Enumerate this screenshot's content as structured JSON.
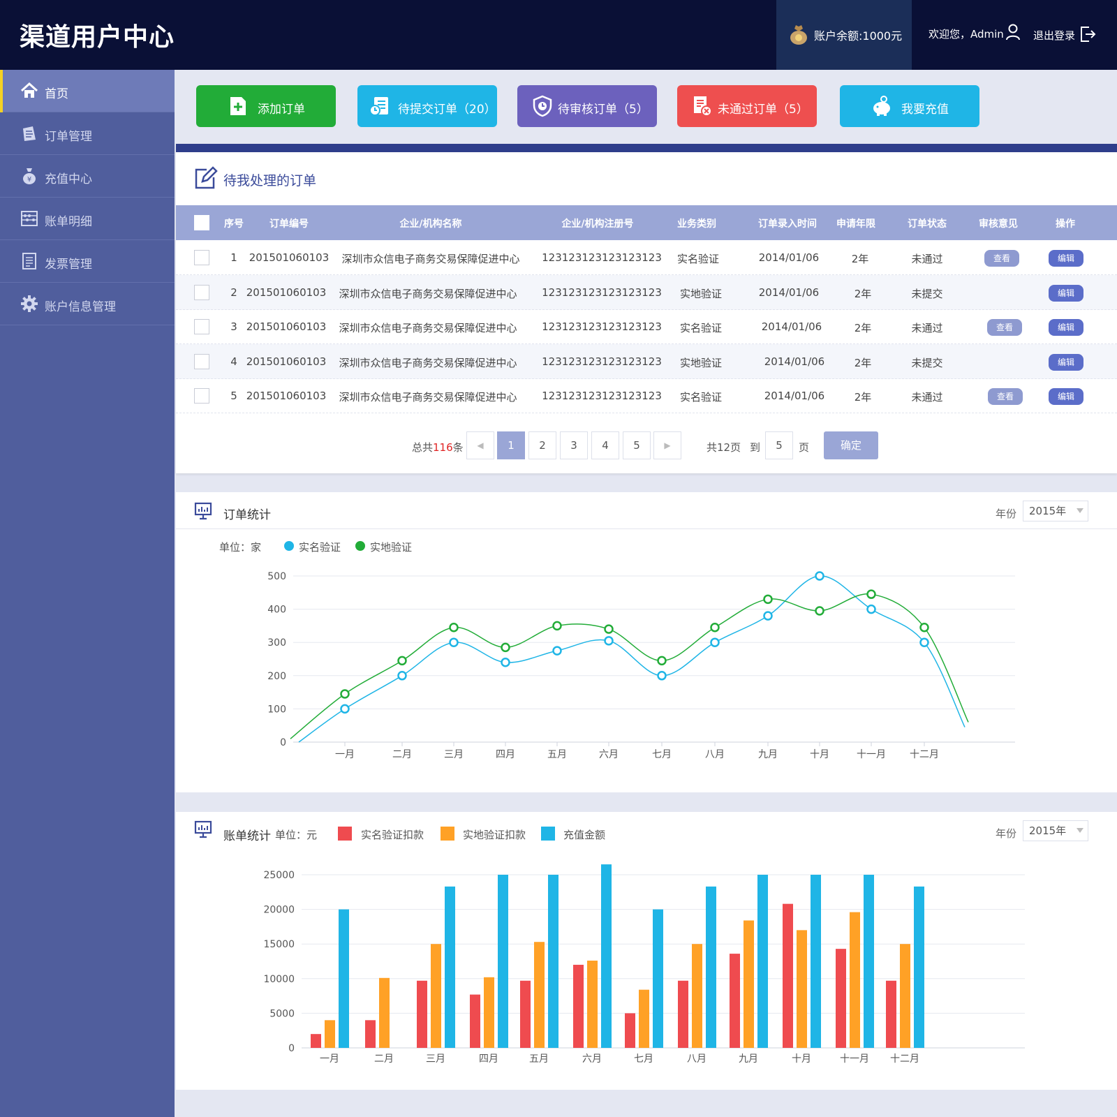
{
  "header": {
    "logo": "渠道用户中心",
    "balance": "账户余额:1000元",
    "welcome": "欢迎您，Admin",
    "logout": "退出登录"
  },
  "sidebar": {
    "items": [
      {
        "label": "首页",
        "icon": "home-icon",
        "active": true
      },
      {
        "label": "订单管理",
        "icon": "order-icon"
      },
      {
        "label": "充值中心",
        "icon": "money-bag-icon"
      },
      {
        "label": "账单明细",
        "icon": "abacus-icon"
      },
      {
        "label": "发票管理",
        "icon": "invoice-icon"
      },
      {
        "label": "账户信息管理",
        "icon": "gear-icon"
      }
    ]
  },
  "actions": [
    {
      "label": "添加订单",
      "color": "#22ac38",
      "icon": "add-document-icon"
    },
    {
      "label": "待提交订单（20）",
      "color": "#1fb5e6",
      "icon": "pending-submit-icon"
    },
    {
      "label": "待审核订单（5）",
      "color": "#6c61bd",
      "icon": "shield-clock-icon"
    },
    {
      "label": "未通过订单（5）",
      "color": "#ee4f4f",
      "icon": "rejected-document-icon"
    },
    {
      "label": "我要充值",
      "color": "#1fb5e6",
      "icon": "piggy-bank-icon"
    }
  ],
  "orders": {
    "title": "待我处理的订单",
    "columns": [
      "序号",
      "订单编号",
      "企业/机构名称",
      "企业/机构注册号",
      "业务类别",
      "订单录入时间",
      "申请年限",
      "订单状态",
      "审核意见",
      "操作"
    ],
    "rows": [
      {
        "no": "1",
        "order_id": "201501060103",
        "company": "深圳市众信电子商务交易保障促进中心",
        "reg_no": "123123123123123123",
        "category": "实名验证",
        "time": "2014/01/06",
        "years": "2年",
        "status": "未通过",
        "review": "查看",
        "op": "编辑"
      },
      {
        "no": "2",
        "order_id": "201501060103",
        "company": "深圳市众信电子商务交易保障促进中心",
        "reg_no": "123123123123123123",
        "category": "实地验证",
        "time": "2014/01/06",
        "years": "2年",
        "status": "未提交",
        "review": "",
        "op": "编辑"
      },
      {
        "no": "3",
        "order_id": "201501060103",
        "company": "深圳市众信电子商务交易保障促进中心",
        "reg_no": "123123123123123123",
        "category": "实名验证",
        "time": "2014/01/06",
        "years": "2年",
        "status": "未通过",
        "review": "查看",
        "op": "编辑"
      },
      {
        "no": "4",
        "order_id": "201501060103",
        "company": "深圳市众信电子商务交易保障促进中心",
        "reg_no": "123123123123123123",
        "category": "实地验证",
        "time": "2014/01/06",
        "years": "2年",
        "status": "未提交",
        "review": "",
        "op": "编辑"
      },
      {
        "no": "5",
        "order_id": "201501060103",
        "company": "深圳市众信电子商务交易保障促进中心",
        "reg_no": "123123123123123123",
        "category": "实名验证",
        "time": "2014/01/06",
        "years": "2年",
        "status": "未通过",
        "review": "查看",
        "op": "编辑"
      }
    ],
    "pagination": {
      "total_prefix": "总共",
      "total": "116",
      "total_suffix": "条",
      "pages": [
        "1",
        "2",
        "3",
        "4",
        "5"
      ],
      "current": "1",
      "page_count": "共12页",
      "goto_label": "到",
      "goto_value": "5",
      "page_unit": "页",
      "confirm": "确定"
    }
  },
  "order_stats": {
    "title": "订单统计",
    "year_label": "年份",
    "year_value": "2015年",
    "unit": "单位：家"
  },
  "bill_stats": {
    "title": "账单统计",
    "year_label": "年份",
    "year_value": "2015年",
    "unit": "单位：元"
  },
  "chart_data": [
    {
      "type": "line",
      "categories": [
        "一月",
        "二月",
        "三月",
        "四月",
        "五月",
        "六月",
        "七月",
        "八月",
        "九月",
        "十月",
        "十一月",
        "十二月"
      ],
      "ylim": [
        0,
        500
      ],
      "yticks": [
        0,
        100,
        200,
        300,
        400,
        500
      ],
      "series": [
        {
          "name": "实名验证",
          "color": "#1fb5e6",
          "values": [
            100,
            200,
            300,
            240,
            275,
            305,
            200,
            300,
            380,
            500,
            400,
            300
          ]
        },
        {
          "name": "实地验证",
          "color": "#22ac38",
          "values": [
            145,
            245,
            345,
            285,
            350,
            340,
            245,
            345,
            430,
            395,
            445,
            345
          ]
        }
      ]
    },
    {
      "type": "bar",
      "categories": [
        "一月",
        "二月",
        "三月",
        "四月",
        "五月",
        "六月",
        "七月",
        "八月",
        "九月",
        "十月",
        "十一月",
        "十二月"
      ],
      "ylim": [
        0,
        25000
      ],
      "yticks": [
        0,
        5000,
        10000,
        15000,
        20000,
        25000
      ],
      "series": [
        {
          "name": "实名验证扣款",
          "color": "#ef4b4f",
          "values": [
            2000,
            4000,
            9700,
            7700,
            9700,
            12000,
            5000,
            9700,
            13600,
            20800,
            14300,
            9700
          ]
        },
        {
          "name": "实地验证扣款",
          "color": "#ffa126",
          "values": [
            4000,
            10100,
            15000,
            10200,
            15300,
            12600,
            8400,
            15000,
            18400,
            17000,
            19600,
            15000
          ]
        },
        {
          "name": "充值金额",
          "color": "#1fb5e6",
          "values": [
            20000,
            null,
            23300,
            25000,
            25000,
            26500,
            20000,
            23300,
            25000,
            25000,
            25000,
            23300
          ]
        }
      ]
    }
  ]
}
